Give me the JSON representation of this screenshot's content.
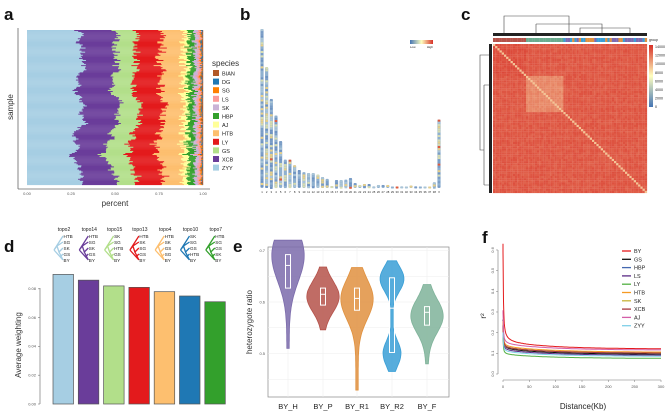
{
  "panels": {
    "a": "a",
    "b": "b",
    "c": "c",
    "d": "d",
    "e": "e",
    "f": "f"
  },
  "chart_data": [
    {
      "id": "a",
      "type": "bar",
      "stacked": true,
      "orientation": "horizontal",
      "xlabel": "percent",
      "ylabel": "sample",
      "xticks": [
        "0.00",
        "0.25",
        "0.50",
        "0.75",
        "1.00"
      ],
      "xlim": [
        0,
        1
      ],
      "legend_title": "species",
      "legend_position": "right",
      "n_samples": 150,
      "series": [
        {
          "name": "ZYY",
          "mean": 0.29,
          "color": "#a6cee3"
        },
        {
          "name": "XCB",
          "mean": 0.2,
          "color": "#6a3d9a"
        },
        {
          "name": "GS",
          "mean": 0.12,
          "color": "#b2df8a"
        },
        {
          "name": "LY",
          "mean": 0.15,
          "color": "#e31a1c"
        },
        {
          "name": "HTB",
          "mean": 0.12,
          "color": "#fdbf6f"
        },
        {
          "name": "AJ",
          "mean": 0.03,
          "color": "#ffff99"
        },
        {
          "name": "HBP",
          "mean": 0.035,
          "color": "#33a02c"
        },
        {
          "name": "SK",
          "mean": 0.02,
          "color": "#cab2d6"
        },
        {
          "name": "LS",
          "mean": 0.015,
          "color": "#fb9a99"
        },
        {
          "name": "SG",
          "mean": 0.006,
          "color": "#ff7f00"
        },
        {
          "name": "DG",
          "mean": 0.004,
          "color": "#1f78b4"
        },
        {
          "name": "BIAN",
          "mean": 0.004,
          "color": "#b15928"
        }
      ],
      "legend_order": [
        "BIAN",
        "DG",
        "SG",
        "LS",
        "SK",
        "HBP",
        "AJ",
        "HTB",
        "LY",
        "GS",
        "XCB",
        "ZYY"
      ]
    },
    {
      "id": "b",
      "type": "bar",
      "colorbar": {
        "low": "Low",
        "high": "High"
      },
      "categories": [
        "1",
        "2",
        "3",
        "4",
        "5",
        "6",
        "7",
        "8",
        "9",
        "10",
        "11",
        "12",
        "13",
        "14",
        "15",
        "16",
        "17",
        "18",
        "19",
        "20",
        "21",
        "22",
        "23",
        "24",
        "25",
        "26",
        "27",
        "28",
        "29",
        "30",
        "31",
        "32",
        "33",
        "34",
        "35",
        "36",
        "37",
        "38",
        "X"
      ],
      "values": [
        1.0,
        0.76,
        0.56,
        0.455,
        0.295,
        0.178,
        0.178,
        0.143,
        0.113,
        0.099,
        0.094,
        0.094,
        0.084,
        0.069,
        0.057,
        0.012,
        0.05,
        0.05,
        0.052,
        0.063,
        0.031,
        0.019,
        0.025,
        0.025,
        0.01,
        0.019,
        0.019,
        0.019,
        0.006,
        0.006,
        0.01,
        0.006,
        0.015,
        0.01,
        0.004,
        0.004,
        0.004,
        0.036,
        0.43
      ]
    },
    {
      "id": "c",
      "type": "heatmap",
      "colorbar_title": "group",
      "colorbar_ticks": [
        "14000",
        "12000",
        "10000",
        "8000",
        "6000",
        "4000",
        "2000",
        "0"
      ],
      "range": [
        0,
        14000
      ],
      "base_value": 12600,
      "block_value": 11000,
      "diagonal_value": 9000,
      "group_colors": [
        "#b5524a",
        "#6aab8e",
        "#e0913f",
        "#3a9fd6",
        "#7d6ab0"
      ]
    },
    {
      "id": "d",
      "type": "bar",
      "ylabel": "Average weighting",
      "yticks": [
        "0.00",
        "0.02",
        "0.04",
        "0.06",
        "0.08"
      ],
      "ylim": [
        0,
        0.09
      ],
      "categories": [
        "topo2",
        "topo14",
        "topo15",
        "topo13",
        "topo4",
        "topo10",
        "topo7"
      ],
      "values": [
        0.09,
        0.086,
        0.082,
        0.081,
        0.078,
        0.075,
        0.071
      ],
      "colors": [
        "#a6cee3",
        "#6a3d9a",
        "#b2df8a",
        "#e31a1c",
        "#fdbf6f",
        "#1f78b4",
        "#33a02c"
      ],
      "tree_tips": [
        [
          "HTB",
          "SG",
          "SK",
          "GS",
          "BY"
        ],
        [
          "HTB",
          "SG",
          "SK",
          "GS",
          "BY"
        ],
        [
          "SK",
          "SG",
          "HTB",
          "GS",
          "BY"
        ],
        [
          "HTB",
          "SK",
          "SG",
          "GS",
          "BY"
        ],
        [
          "HTB",
          "SK",
          "GS",
          "SG",
          "BY"
        ],
        [
          "SK",
          "SG",
          "GS",
          "HTB",
          "BY"
        ],
        [
          "HTB",
          "SG",
          "GS",
          "SK",
          "BY"
        ]
      ]
    },
    {
      "id": "e",
      "type": "violin",
      "ylabel": "heterozygote ratio",
      "yticks": [
        "0.5",
        "0.6",
        "0.7"
      ],
      "ylim": [
        0.42,
        0.72
      ],
      "categories": [
        "BY_H",
        "BY_P",
        "BY_R1",
        "BY_R2",
        "BY_F"
      ],
      "colors": [
        "#7b6bab",
        "#b5524a",
        "#e0913f",
        "#3a9fd6",
        "#7fb39a"
      ],
      "stats": [
        {
          "min": 0.51,
          "q1": 0.627,
          "median": 0.671,
          "q3": 0.692,
          "max": 0.72
        },
        {
          "min": 0.546,
          "q1": 0.594,
          "median": 0.615,
          "q3": 0.627,
          "max": 0.668
        },
        {
          "min": 0.429,
          "q1": 0.584,
          "median": 0.607,
          "q3": 0.627,
          "max": 0.667
        },
        {
          "min": 0.465,
          "q1": 0.502,
          "median": 0.588,
          "q3": 0.647,
          "max": 0.68
        },
        {
          "min": 0.48,
          "q1": 0.555,
          "median": 0.58,
          "q3": 0.591,
          "max": 0.634
        }
      ]
    },
    {
      "id": "f",
      "type": "line",
      "xlabel": "Distance(Kb)",
      "ylabel": "r²",
      "xticks": [
        "0",
        "50",
        "100",
        "150",
        "200",
        "250",
        "300"
      ],
      "xlim": [
        0,
        300
      ],
      "yticks": [
        "0.0",
        "0.1",
        "0.2",
        "0.3",
        "0.4",
        "0.5",
        "0.6"
      ],
      "ylim": [
        0,
        0.6
      ],
      "legend_position": "top-right",
      "series": [
        {
          "name": "BY",
          "color": "#e41a1c",
          "start": 0.6,
          "end": 0.12
        },
        {
          "name": "GS",
          "color": "#111111",
          "start": 0.24,
          "end": 0.095
        },
        {
          "name": "HBP",
          "color": "#4468b0",
          "start": 0.22,
          "end": 0.1
        },
        {
          "name": "LS",
          "color": "#5b2a86",
          "start": 0.21,
          "end": 0.09
        },
        {
          "name": "LY",
          "color": "#52b043",
          "start": 0.16,
          "end": 0.075
        },
        {
          "name": "HTB",
          "color": "#f59a23",
          "start": 0.23,
          "end": 0.105
        },
        {
          "name": "SK",
          "color": "#c8b43a",
          "start": 0.2,
          "end": 0.1
        },
        {
          "name": "XCB",
          "color": "#a6373f",
          "start": 0.21,
          "end": 0.1
        },
        {
          "name": "AJ",
          "color": "#d45fa8",
          "start": 0.28,
          "end": 0.115
        },
        {
          "name": "ZYY",
          "color": "#7fd0e8",
          "start": 0.18,
          "end": 0.085
        }
      ]
    }
  ]
}
